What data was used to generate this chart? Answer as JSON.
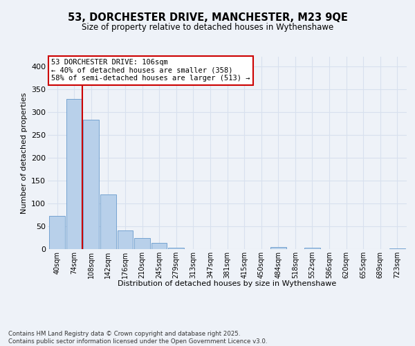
{
  "title_line1": "53, DORCHESTER DRIVE, MANCHESTER, M23 9QE",
  "title_line2": "Size of property relative to detached houses in Wythenshawe",
  "xlabel": "Distribution of detached houses by size in Wythenshawe",
  "ylabel": "Number of detached properties",
  "categories": [
    "40sqm",
    "74sqm",
    "108sqm",
    "142sqm",
    "176sqm",
    "210sqm",
    "245sqm",
    "279sqm",
    "313sqm",
    "347sqm",
    "381sqm",
    "415sqm",
    "450sqm",
    "484sqm",
    "518sqm",
    "552sqm",
    "586sqm",
    "620sqm",
    "655sqm",
    "689sqm",
    "723sqm"
  ],
  "values": [
    72,
    328,
    283,
    120,
    41,
    24,
    13,
    3,
    0,
    0,
    0,
    0,
    0,
    4,
    0,
    3,
    0,
    0,
    0,
    0,
    2
  ],
  "bar_color": "#b8d0ea",
  "bar_edge_color": "#6699cc",
  "vline_x": 2.0,
  "vline_color": "#cc0000",
  "annotation_text": "53 DORCHESTER DRIVE: 106sqm\n← 40% of detached houses are smaller (358)\n58% of semi-detached houses are larger (513) →",
  "annotation_box_color": "#ffffff",
  "annotation_box_edge": "#cc0000",
  "ylim": [
    0,
    420
  ],
  "yticks": [
    0,
    50,
    100,
    150,
    200,
    250,
    300,
    350,
    400
  ],
  "footer_text": "Contains HM Land Registry data © Crown copyright and database right 2025.\nContains public sector information licensed under the Open Government Licence v3.0.",
  "background_color": "#eef2f8",
  "plot_bg_color": "#eef2f8",
  "grid_color": "#d8e0ee"
}
